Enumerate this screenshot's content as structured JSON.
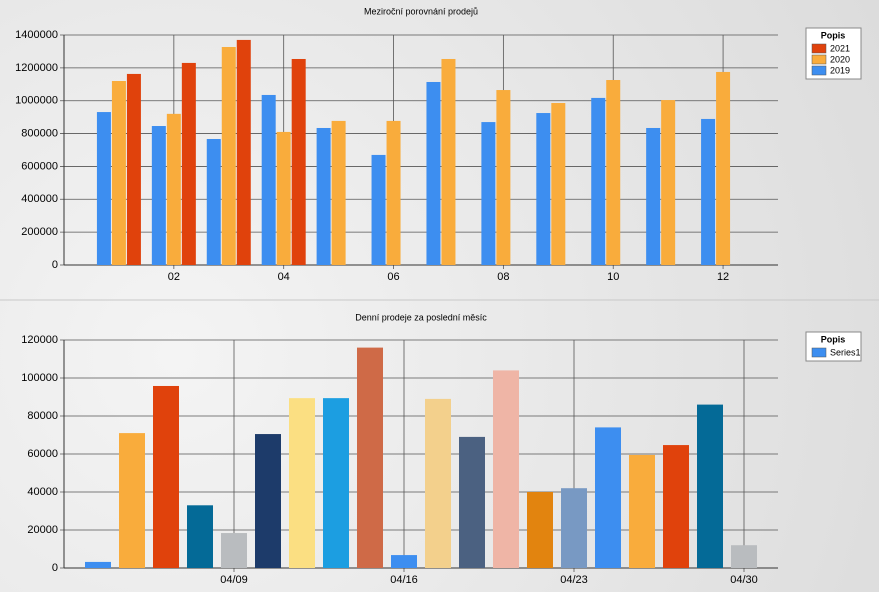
{
  "chart_data": [
    {
      "type": "bar",
      "title": "Meziroční porovnání prodejů",
      "legend_title": "Popis",
      "legend": "top-right",
      "grid": true,
      "categories": [
        null,
        "02",
        null,
        "04",
        null,
        "06",
        null,
        "08",
        null,
        "10",
        null,
        "12"
      ],
      "series": [
        {
          "name": "2019",
          "color": "#3d8ef0",
          "values": [
            931000,
            846000,
            767000,
            1035000,
            834000,
            670000,
            1114000,
            870000,
            925000,
            1017000,
            834000,
            889000
          ]
        },
        {
          "name": "2020",
          "color": "#f9ac3c",
          "values": [
            1120000,
            920000,
            1327000,
            810000,
            877000,
            877000,
            1254000,
            1065000,
            986000,
            1126000,
            1004000,
            1175000
          ]
        },
        {
          "name": "2021",
          "color": "#e0420c",
          "values": [
            1163000,
            1230000,
            1370000,
            1254000,
            null,
            null,
            null,
            null,
            null,
            null,
            null,
            null
          ]
        }
      ],
      "ylim": [
        0,
        1400000
      ],
      "yticks": [
        0,
        200000,
        400000,
        600000,
        800000,
        1000000,
        1200000,
        1400000
      ]
    },
    {
      "type": "bar",
      "title": "Denní prodeje za poslední měsíc",
      "legend_title": "Popis",
      "legend": "top-right",
      "grid": true,
      "categories": [
        null,
        null,
        null,
        null,
        "04/09",
        null,
        null,
        null,
        null,
        "04/16",
        null,
        null,
        null,
        null,
        "04/23",
        null,
        null,
        null,
        null,
        "04/30"
      ],
      "series": [
        {
          "name": "Series1",
          "color": "#3d8ef0",
          "values": [
            3200,
            71000,
            95800,
            33000,
            18400,
            70500,
            89400,
            89400,
            116000,
            6800,
            89000,
            69000,
            104000,
            40000,
            42000,
            74000,
            59500,
            64700,
            86000,
            12000
          ],
          "colors": [
            "#3d8ef0",
            "#f9ac3c",
            "#e0420c",
            "#046a97",
            "#b9bcbf",
            "#1d3b6a",
            "#fbdf82",
            "#1c9ee1",
            "#cf6a47",
            "#3d8ef0",
            "#f3d08c",
            "#4b6181",
            "#efb5a6",
            "#e2840f",
            "#7899c3",
            "#3d8ef0",
            "#f9ac3c",
            "#e0420c",
            "#046a97",
            "#b9bcbf"
          ]
        }
      ],
      "ylim": [
        0,
        120000
      ],
      "yticks": [
        0,
        20000,
        40000,
        60000,
        80000,
        100000,
        120000
      ]
    }
  ]
}
